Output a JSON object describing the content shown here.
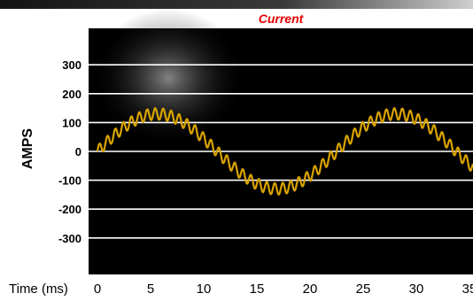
{
  "chart_data": {
    "type": "line",
    "title": "Current",
    "ylabel": "AMPS",
    "xlabel": "Time (ms)",
    "ylim": [
      -400,
      400
    ],
    "xlim": [
      0,
      36
    ],
    "yticks": [
      300,
      200,
      100,
      0,
      -100,
      -200,
      -300
    ],
    "ytick_labels": [
      "300",
      "200",
      "100",
      "0",
      "-100",
      "-200",
      "-300"
    ],
    "xticks": [
      0,
      5,
      10,
      15,
      20,
      25,
      30,
      35
    ],
    "xtick_labels": [
      "0",
      "5",
      "10",
      "15",
      "20",
      "25",
      "30",
      "35"
    ],
    "grid": "horizontal",
    "series": [
      {
        "color": "#d9a300",
        "fundamental_amplitude": 130,
        "fundamental_period_ms": 22.5,
        "ripple_amplitude": 20,
        "ripple_period_ms": 0.75,
        "x_start_ms": 0,
        "x_end_ms": 36
      }
    ]
  },
  "colors": {
    "plot_background": "#000000",
    "grid": "#ffffff",
    "title": "#e60000",
    "tick_text": "#000000"
  }
}
